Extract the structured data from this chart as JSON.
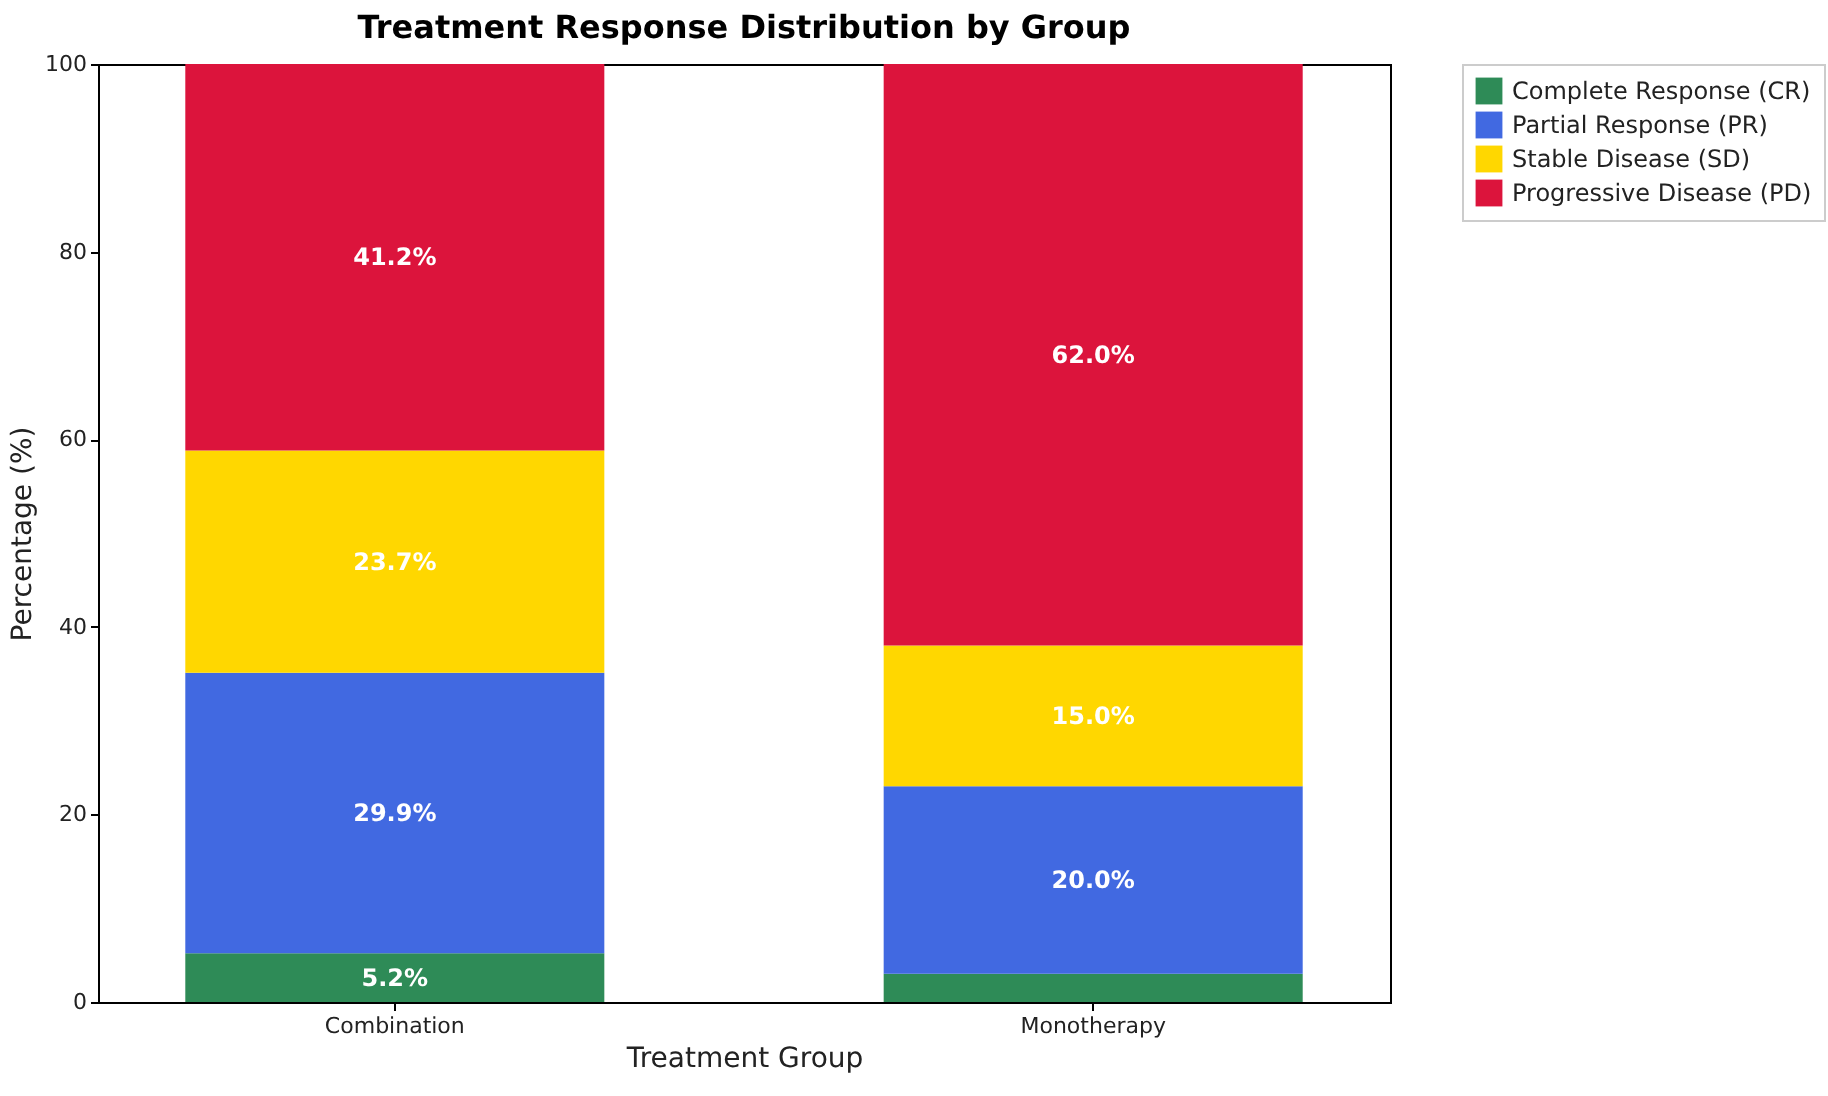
{
  "chart_data": {
    "type": "bar",
    "title": "Treatment Response Distribution by Group",
    "xlabel": "Treatment Group",
    "ylabel": "Percentage (%)",
    "categories": [
      "Combination",
      "Monotherapy"
    ],
    "stacked": true,
    "series": [
      {
        "name": "Complete Response (CR)",
        "color": "#2e8b57",
        "values": [
          5.2,
          3.0
        ],
        "value_labels": [
          "5.2%",
          null
        ]
      },
      {
        "name": "Partial Response (PR)",
        "color": "#4169e1",
        "values": [
          29.9,
          20.0
        ],
        "value_labels": [
          "29.9%",
          "20.0%"
        ]
      },
      {
        "name": "Stable Disease (SD)",
        "color": "#ffd700",
        "values": [
          23.7,
          15.0
        ],
        "value_labels": [
          "23.7%",
          "15.0%"
        ]
      },
      {
        "name": "Progressive Disease (PD)",
        "color": "#dc143c",
        "values": [
          41.2,
          62.0
        ],
        "value_labels": [
          "41.2%",
          "62.0%"
        ]
      }
    ],
    "ylim": [
      0,
      100
    ],
    "yticks": [
      0,
      20,
      40,
      60,
      80,
      100
    ],
    "grid": false,
    "legend": "top right"
  }
}
